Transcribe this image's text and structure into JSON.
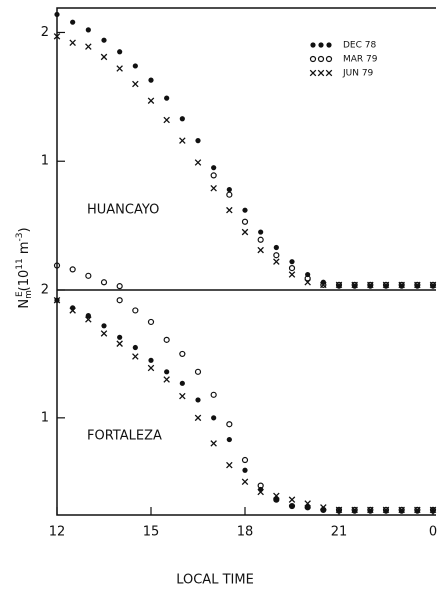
{
  "chart_data": [
    {
      "type": "scatter",
      "annotation": "HUANCAYO",
      "ylabel": [
        "N",
        "m",
        "E",
        "(10",
        "11",
        " m",
        "-3",
        ")"
      ],
      "x": [
        12,
        12.5,
        13,
        13.5,
        14,
        14.5,
        15,
        15.5,
        16,
        16.5,
        17,
        17.5,
        18,
        18.5,
        19,
        19.5,
        20,
        20.5,
        21,
        21.5,
        22,
        22.5,
        23,
        23.5,
        24
      ],
      "ylim": [
        0,
        2.19
      ],
      "yticks": [
        1,
        2
      ],
      "legend": "upper right",
      "series": [
        {
          "name": "DEC 78",
          "marker": "filled",
          "color": "#111",
          "values": [
            2.14,
            2.08,
            2.02,
            1.94,
            1.85,
            1.74,
            1.63,
            1.49,
            1.33,
            1.16,
            0.95,
            0.78,
            0.62,
            0.45,
            0.33,
            0.22,
            0.12,
            0.06,
            0.03,
            0.03,
            0.03,
            0.03,
            0.03,
            0.03,
            0.03
          ]
        },
        {
          "name": "MAR 79",
          "marker": "open",
          "color": "#111",
          "values": [
            0.19,
            0.16,
            0.11,
            0.06,
            0.03,
            null,
            null,
            null,
            null,
            null,
            0.89,
            0.74,
            0.53,
            0.39,
            0.27,
            0.17,
            0.09,
            0.04,
            0.04,
            0.04,
            0.04,
            0.04,
            0.04,
            0.04,
            0.04
          ]
        },
        {
          "name": "JUN 79",
          "marker": "x",
          "color": "#111",
          "values": [
            1.97,
            1.92,
            1.89,
            1.81,
            1.72,
            1.6,
            1.47,
            1.32,
            1.16,
            0.99,
            0.79,
            0.62,
            0.45,
            0.31,
            0.22,
            0.12,
            0.06,
            0.04,
            0.04,
            0.04,
            0.04,
            0.04,
            0.04,
            0.04,
            0.04
          ]
        }
      ]
    },
    {
      "type": "scatter",
      "annotation": "FORTALEZA",
      "xlabel": "LOCAL TIME",
      "x": [
        12,
        12.5,
        13,
        13.5,
        14,
        14.5,
        15,
        15.5,
        16,
        16.5,
        17,
        17.5,
        18,
        18.5,
        19,
        19.5,
        20,
        20.5,
        21,
        21.5,
        22,
        22.5,
        23,
        23.5,
        24
      ],
      "xlim": [
        12,
        24
      ],
      "xticks": [
        12,
        15,
        18,
        21,
        {
          "value": 24,
          "label": "0"
        }
      ],
      "ylim": [
        0.24,
        2
      ],
      "yticks": [
        1,
        2
      ],
      "series": [
        {
          "marker": "filled",
          "color": "#111",
          "values": [
            1.92,
            1.86,
            1.8,
            1.72,
            1.63,
            1.55,
            1.45,
            1.36,
            1.27,
            1.14,
            1.0,
            0.83,
            0.59,
            0.44,
            0.36,
            0.31,
            0.3,
            0.28,
            0.27,
            0.27,
            0.27,
            0.27,
            0.27,
            0.27,
            0.27
          ]
        },
        {
          "marker": "open",
          "color": "#111",
          "values": [
            null,
            null,
            null,
            null,
            1.92,
            1.84,
            1.75,
            1.61,
            1.5,
            1.36,
            1.18,
            0.95,
            0.67,
            0.47,
            0.36,
            0.31,
            0.3,
            0.28,
            0.28,
            0.28,
            0.28,
            0.28,
            0.28,
            0.28,
            0.28
          ]
        },
        {
          "marker": "x",
          "color": "#111",
          "values": [
            1.92,
            1.84,
            1.77,
            1.66,
            1.58,
            1.48,
            1.39,
            1.3,
            1.17,
            1.0,
            0.8,
            0.63,
            0.5,
            0.42,
            0.39,
            0.36,
            0.33,
            0.3,
            0.28,
            0.28,
            0.28,
            0.28,
            0.28,
            0.28,
            0.28
          ]
        }
      ]
    }
  ]
}
